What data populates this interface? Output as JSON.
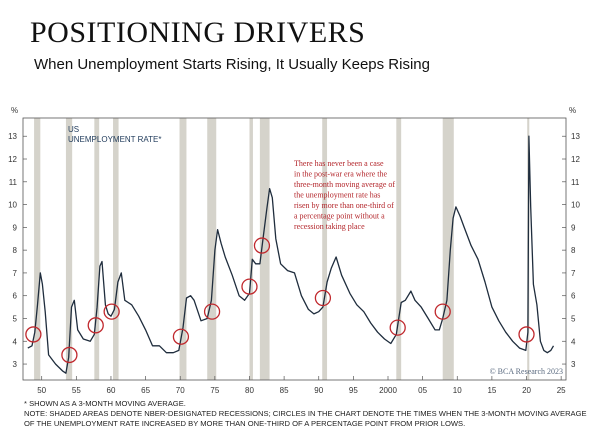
{
  "header": {
    "title": "POSITIONING DRIVERS",
    "subtitle": "When Unemployment Starts Rising, It Usually Keeps Rising"
  },
  "chart_data": {
    "type": "line",
    "series_label_1": "US",
    "series_label_2": "UNEMPLOYMENT RATE*",
    "y_unit": "%",
    "ylim": [
      2.3,
      13.8
    ],
    "xlim": [
      1947.3,
      2025.7
    ],
    "yticks": [
      3,
      4,
      5,
      6,
      7,
      8,
      9,
      10,
      11,
      12,
      13
    ],
    "xticks": [
      {
        "value": 1950,
        "label": "50"
      },
      {
        "value": 1955,
        "label": "55"
      },
      {
        "value": 1960,
        "label": "60"
      },
      {
        "value": 1965,
        "label": "65"
      },
      {
        "value": 1970,
        "label": "70"
      },
      {
        "value": 1975,
        "label": "75"
      },
      {
        "value": 1980,
        "label": "80"
      },
      {
        "value": 1985,
        "label": "85"
      },
      {
        "value": 1990,
        "label": "90"
      },
      {
        "value": 1995,
        "label": "95"
      },
      {
        "value": 2000,
        "label": "2000"
      },
      {
        "value": 2005,
        "label": "05"
      },
      {
        "value": 2010,
        "label": "10"
      },
      {
        "value": 2015,
        "label": "15"
      },
      {
        "value": 2020,
        "label": "20"
      },
      {
        "value": 2025,
        "label": "25"
      }
    ],
    "recessions": [
      [
        1948.9,
        1949.8
      ],
      [
        1953.5,
        1954.4
      ],
      [
        1957.6,
        1958.3
      ],
      [
        1960.3,
        1961.1
      ],
      [
        1969.9,
        1970.9
      ],
      [
        1973.9,
        1975.2
      ],
      [
        1980.0,
        1980.5
      ],
      [
        1981.5,
        1982.9
      ],
      [
        1990.5,
        1991.2
      ],
      [
        2001.2,
        2001.9
      ],
      [
        2007.9,
        2009.5
      ],
      [
        2020.1,
        2020.4
      ]
    ],
    "points": [
      [
        1948.0,
        3.7
      ],
      [
        1948.6,
        3.8
      ],
      [
        1949.0,
        4.4
      ],
      [
        1949.4,
        5.6
      ],
      [
        1949.8,
        7.0
      ],
      [
        1950.1,
        6.5
      ],
      [
        1950.5,
        5.3
      ],
      [
        1951.0,
        3.4
      ],
      [
        1952.0,
        3.0
      ],
      [
        1953.0,
        2.7
      ],
      [
        1953.5,
        2.6
      ],
      [
        1953.9,
        3.3
      ],
      [
        1954.3,
        5.5
      ],
      [
        1954.7,
        5.8
      ],
      [
        1955.2,
        4.5
      ],
      [
        1956.0,
        4.1
      ],
      [
        1957.0,
        4.0
      ],
      [
        1957.6,
        4.3
      ],
      [
        1958.0,
        5.5
      ],
      [
        1958.4,
        7.3
      ],
      [
        1958.7,
        7.5
      ],
      [
        1959.2,
        5.6
      ],
      [
        1959.6,
        5.2
      ],
      [
        1960.0,
        5.1
      ],
      [
        1960.5,
        5.4
      ],
      [
        1961.0,
        6.6
      ],
      [
        1961.5,
        7.0
      ],
      [
        1962.0,
        5.8
      ],
      [
        1963.0,
        5.6
      ],
      [
        1964.0,
        5.1
      ],
      [
        1965.0,
        4.5
      ],
      [
        1966.0,
        3.8
      ],
      [
        1967.0,
        3.8
      ],
      [
        1968.0,
        3.5
      ],
      [
        1969.0,
        3.5
      ],
      [
        1969.8,
        3.6
      ],
      [
        1970.4,
        4.6
      ],
      [
        1970.9,
        5.9
      ],
      [
        1971.5,
        6.0
      ],
      [
        1972.0,
        5.8
      ],
      [
        1973.0,
        4.9
      ],
      [
        1973.9,
        5.0
      ],
      [
        1974.5,
        5.8
      ],
      [
        1975.0,
        8.0
      ],
      [
        1975.4,
        8.9
      ],
      [
        1975.9,
        8.3
      ],
      [
        1976.5,
        7.7
      ],
      [
        1977.5,
        6.9
      ],
      [
        1978.5,
        6.0
      ],
      [
        1979.3,
        5.8
      ],
      [
        1980.0,
        6.1
      ],
      [
        1980.4,
        7.6
      ],
      [
        1980.9,
        7.4
      ],
      [
        1981.5,
        7.4
      ],
      [
        1982.0,
        8.6
      ],
      [
        1982.5,
        9.8
      ],
      [
        1982.9,
        10.7
      ],
      [
        1983.3,
        10.3
      ],
      [
        1983.8,
        8.5
      ],
      [
        1984.5,
        7.4
      ],
      [
        1985.5,
        7.1
      ],
      [
        1986.5,
        7.0
      ],
      [
        1987.5,
        6.0
      ],
      [
        1988.5,
        5.4
      ],
      [
        1989.3,
        5.2
      ],
      [
        1990.0,
        5.3
      ],
      [
        1990.6,
        5.5
      ],
      [
        1991.2,
        6.6
      ],
      [
        1991.8,
        7.2
      ],
      [
        1992.5,
        7.7
      ],
      [
        1993.3,
        6.9
      ],
      [
        1994.5,
        6.1
      ],
      [
        1995.5,
        5.6
      ],
      [
        1996.5,
        5.3
      ],
      [
        1997.5,
        4.8
      ],
      [
        1998.5,
        4.4
      ],
      [
        1999.5,
        4.1
      ],
      [
        2000.4,
        3.9
      ],
      [
        2001.2,
        4.3
      ],
      [
        2001.9,
        5.7
      ],
      [
        2002.5,
        5.8
      ],
      [
        2003.3,
        6.2
      ],
      [
        2003.9,
        5.8
      ],
      [
        2004.8,
        5.5
      ],
      [
        2005.8,
        5.0
      ],
      [
        2006.8,
        4.5
      ],
      [
        2007.4,
        4.5
      ],
      [
        2007.9,
        5.0
      ],
      [
        2008.5,
        5.8
      ],
      [
        2009.0,
        8.0
      ],
      [
        2009.4,
        9.4
      ],
      [
        2009.8,
        9.9
      ],
      [
        2010.4,
        9.5
      ],
      [
        2011.0,
        9.0
      ],
      [
        2012.0,
        8.2
      ],
      [
        2013.0,
        7.6
      ],
      [
        2014.0,
        6.6
      ],
      [
        2015.0,
        5.5
      ],
      [
        2016.0,
        4.9
      ],
      [
        2017.0,
        4.4
      ],
      [
        2018.0,
        4.0
      ],
      [
        2019.0,
        3.7
      ],
      [
        2019.9,
        3.6
      ],
      [
        2020.2,
        4.4
      ],
      [
        2020.35,
        13.0
      ],
      [
        2020.6,
        9.9
      ],
      [
        2021.0,
        6.5
      ],
      [
        2021.5,
        5.6
      ],
      [
        2022.0,
        4.0
      ],
      [
        2022.5,
        3.6
      ],
      [
        2023.0,
        3.5
      ],
      [
        2023.5,
        3.6
      ],
      [
        2023.9,
        3.8
      ]
    ],
    "circles": [
      [
        1948.8,
        4.3
      ],
      [
        1954.0,
        3.4
      ],
      [
        1957.8,
        4.7
      ],
      [
        1960.1,
        5.3
      ],
      [
        1970.1,
        4.2
      ],
      [
        1974.6,
        5.3
      ],
      [
        1980.0,
        6.4
      ],
      [
        1981.8,
        8.2
      ],
      [
        1990.6,
        5.9
      ],
      [
        2001.4,
        4.6
      ],
      [
        2007.9,
        5.3
      ],
      [
        2020.0,
        4.3
      ]
    ],
    "annotation": [
      "There has never been a case",
      "in the post-war era where the",
      "three-month moving average of",
      "the unemployment rate has",
      "risen by more than one-third of",
      "a percentage point without a",
      "recession taking place"
    ],
    "source": "© BCA Research 2023"
  },
  "footnote": {
    "line1": "* SHOWN AS A 3-MONTH MOVING AVERAGE.",
    "line2": "NOTE: SHADED AREAS DENOTE NBER-DESIGNATED RECESSIONS; CIRCLES IN THE CHART DENOTE THE TIMES WHEN THE 3-MONTH MOVING AVERAGE",
    "line3": "OF THE UNEMPLOYMENT RATE INCREASED BY MORE THAN ONE-THIRD OF A PERCENTAGE POINT FROM PRIOR LOWS."
  },
  "colors": {
    "line": "#1f2d3d",
    "recession": "#d5d3cb",
    "circle": "#c0282d",
    "annotation": "#b3262b",
    "series_label": "#1f3a5a",
    "source": "#5b6b80"
  }
}
